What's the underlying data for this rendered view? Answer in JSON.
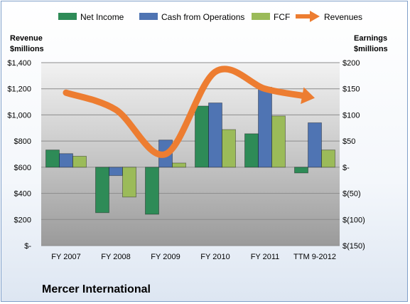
{
  "chart_data": {
    "type": "bar",
    "title": "Mercer International",
    "categories": [
      "FY 2007",
      "FY 2008",
      "FY 2009",
      "FY 2010",
      "FY 2011",
      "TTM 9-2012"
    ],
    "series": [
      {
        "name": "Net Income",
        "axis": "right",
        "color": "#2e8b57",
        "values": [
          33,
          -87,
          -90,
          117,
          64,
          -11
        ]
      },
      {
        "name": "Cash from Operations",
        "axis": "right",
        "color": "#4f74b3",
        "values": [
          26,
          -16,
          52,
          123,
          153,
          85
        ]
      },
      {
        "name": "FCF",
        "axis": "right",
        "color": "#9bbb59",
        "values": [
          21,
          -57,
          8,
          72,
          98,
          33
        ]
      },
      {
        "name": "Revenues",
        "axis": "left",
        "color": "#ed7d31",
        "style": "arrow",
        "values": [
          1170,
          1040,
          700,
          1330,
          1200,
          1130
        ]
      }
    ],
    "left_axis": {
      "label_line1": "Revenue",
      "label_line2": "$millions",
      "ylim": [
        0,
        1400
      ],
      "ticks": [
        "$-",
        "$200",
        "$400",
        "$600",
        "$800",
        "$1,000",
        "$1,200",
        "$1,400"
      ]
    },
    "right_axis": {
      "label_line1": "Earnings",
      "label_line2": "$millions",
      "ylim": [
        -150,
        200
      ],
      "ticks": [
        "$(150)",
        "$(100)",
        "$(50)",
        "$-",
        "$50",
        "$100",
        "$150",
        "$200"
      ]
    },
    "grid": true,
    "legend_position": "top"
  }
}
